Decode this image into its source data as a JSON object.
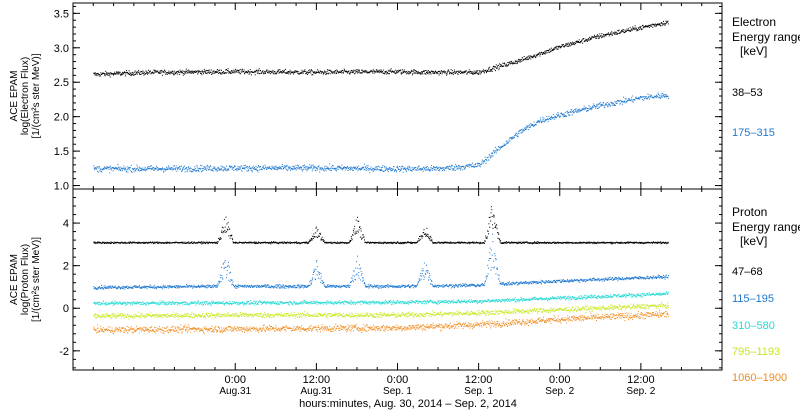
{
  "chart_data": [
    {
      "type": "scatter",
      "panel": "electron",
      "ylabel_lines": [
        "ACE EPAM",
        "log(Electron Flux)",
        "[1/(cm²s ster MeV)]"
      ],
      "ylim": [
        0.95,
        3.65
      ],
      "yticks": [
        1.0,
        1.5,
        2.0,
        2.5,
        3.0,
        3.5
      ],
      "ytick_labels": [
        "1.0",
        "1.5",
        "2.0",
        "2.5",
        "3.0",
        "3.5"
      ],
      "legend_title_lines": [
        "Electron",
        "Energy range",
        "[keV]"
      ],
      "series": [
        {
          "name": "38–53",
          "color": "#000000",
          "x": [
            -21,
            -12,
            0,
            12,
            24,
            28,
            36,
            42,
            48,
            54,
            60,
            64
          ],
          "y": [
            2.62,
            2.65,
            2.66,
            2.65,
            2.66,
            2.65,
            2.65,
            2.82,
            3.02,
            3.18,
            3.3,
            3.38
          ]
        },
        {
          "name": "175–315",
          "color": "#1e78d0",
          "x": [
            -21,
            -12,
            0,
            12,
            24,
            30,
            36,
            39,
            42,
            45,
            48,
            54,
            60,
            64
          ],
          "y": [
            1.25,
            1.25,
            1.26,
            1.26,
            1.25,
            1.25,
            1.3,
            1.55,
            1.78,
            1.95,
            2.03,
            2.17,
            2.28,
            2.32
          ]
        }
      ]
    },
    {
      "type": "scatter",
      "panel": "proton",
      "ylabel_lines": [
        "ACE EPAM",
        "log(Proton Flux)",
        "[1/(cm²s ster MeV)]"
      ],
      "ylim": [
        -2.9,
        5.6
      ],
      "yticks": [
        -2,
        0,
        2,
        4
      ],
      "ytick_labels": [
        "-2",
        "0",
        "2",
        "4"
      ],
      "legend_title_lines": [
        "Proton",
        "Energy range",
        "[keV]"
      ],
      "series": [
        {
          "name": "47–68",
          "color": "#000000",
          "x": [
            -21,
            64
          ],
          "y": [
            3.1,
            3.1
          ],
          "spikes": [
            {
              "x": -1.5,
              "h": 1.0
            },
            {
              "x": 12,
              "h": 0.6
            },
            {
              "x": 18,
              "h": 0.9
            },
            {
              "x": 28,
              "h": 0.7
            },
            {
              "x": 38,
              "h": 1.5
            }
          ]
        },
        {
          "name": "115–195",
          "color": "#1e78d0",
          "x": [
            -21,
            0,
            24,
            36,
            48,
            64
          ],
          "y": [
            1.0,
            1.05,
            1.05,
            1.1,
            1.3,
            1.5
          ],
          "spikes": [
            {
              "x": -1.5,
              "h": 1.3
            },
            {
              "x": 12,
              "h": 0.9
            },
            {
              "x": 18,
              "h": 1.1
            },
            {
              "x": 28,
              "h": 1.0
            },
            {
              "x": 38,
              "h": 1.8
            }
          ]
        },
        {
          "name": "310–580",
          "color": "#25d9d4",
          "x": [
            -21,
            0,
            24,
            36,
            48,
            64
          ],
          "y": [
            0.25,
            0.27,
            0.3,
            0.35,
            0.5,
            0.7
          ]
        },
        {
          "name": "795–1193",
          "color": "#c8e61e",
          "x": [
            -21,
            0,
            24,
            36,
            48,
            64
          ],
          "y": [
            -0.35,
            -0.3,
            -0.3,
            -0.2,
            -0.05,
            0.15
          ]
        },
        {
          "name": "1060–1900",
          "color": "#f08c1e",
          "x": [
            -21,
            0,
            24,
            36,
            48,
            64
          ],
          "y": [
            -1.0,
            -0.95,
            -0.9,
            -0.75,
            -0.5,
            -0.25
          ]
        }
      ]
    }
  ],
  "x_axis": {
    "xlim": [
      -24,
      72
    ],
    "major_ticks": [
      0,
      12,
      24,
      36,
      48,
      60
    ],
    "tick_labels": [
      {
        "x": 0,
        "time": "0:00",
        "date": "Aug.31"
      },
      {
        "x": 12,
        "time": "12:00",
        "date": "Aug.31"
      },
      {
        "x": 24,
        "time": "0:00",
        "date": "Sep. 1"
      },
      {
        "x": 36,
        "time": "12:00",
        "date": "Sep. 1"
      },
      {
        "x": 48,
        "time": "0:00",
        "date": "Sep. 2"
      },
      {
        "x": 60,
        "time": "12:00",
        "date": "Sep. 2"
      }
    ],
    "xlabel": "hours:minutes, Aug. 30, 2014 – Sep. 2, 2014"
  },
  "colors": {
    "axis": "#000000",
    "background": "#ffffff"
  }
}
